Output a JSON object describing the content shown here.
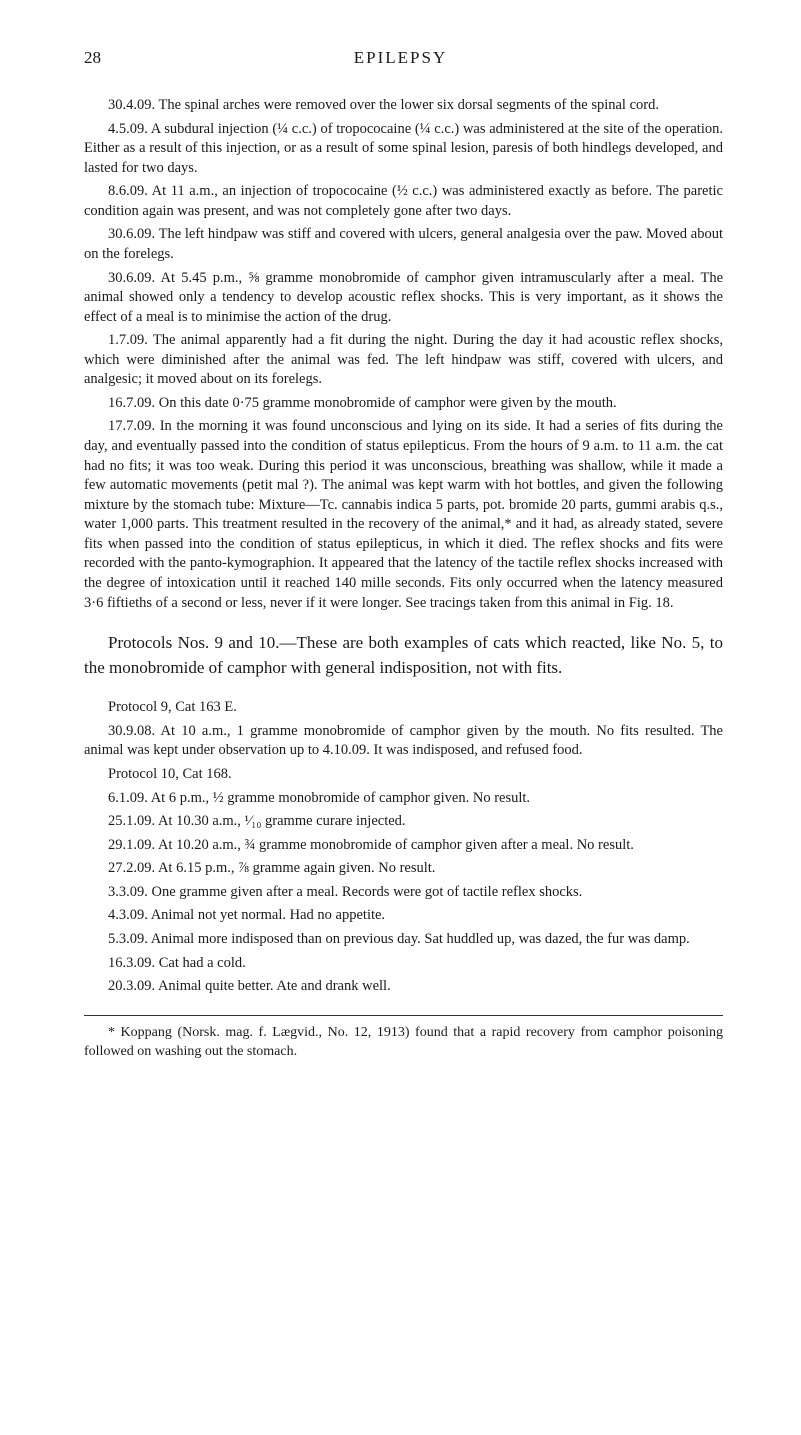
{
  "page": {
    "number": "28",
    "running_head": "EPILEPSY"
  },
  "body": {
    "p1": "30.4.09. The spinal arches were removed over the lower six dorsal segments of the spinal cord.",
    "p2": "4.5.09. A subdural injection (¼ c.c.) of tropococaine (¼ c.c.) was administered at the site of the operation. Either as a result of this injection, or as a result of some spinal lesion, paresis of both hindlegs developed, and lasted for two days.",
    "p3": "8.6.09. At 11 a.m., an injection of tropococaine (½ c.c.) was administered exactly as before. The paretic condition again was present, and was not completely gone after two days.",
    "p4": "30.6.09. The left hindpaw was stiff and covered with ulcers, general analgesia over the paw. Moved about on the forelegs.",
    "p5": "30.6.09. At 5.45 p.m., ⅝ gramme monobromide of camphor given intramuscularly after a meal. The animal showed only a tendency to develop acoustic reflex shocks. This is very important, as it shows the effect of a meal is to minimise the action of the drug.",
    "p6": "1.7.09. The animal apparently had a fit during the night. During the day it had acoustic reflex shocks, which were diminished after the animal was fed. The left hindpaw was stiff, covered with ulcers, and analgesic; it moved about on its forelegs.",
    "p7": "16.7.09. On this date 0·75 gramme monobromide of camphor were given by the mouth.",
    "p8": "17.7.09. In the morning it was found unconscious and lying on its side. It had a series of fits during the day, and eventually passed into the condition of status epilepticus. From the hours of 9 a.m. to 11 a.m. the cat had no fits; it was too weak. During this period it was unconscious, breathing was shallow, while it made a few automatic movements (petit mal ?). The animal was kept warm with hot bottles, and given the following mixture by the stomach tube: Mixture—Tc. cannabis indica 5 parts, pot. bromide 20 parts, gummi arabis q.s., water 1,000 parts. This treatment resulted in the recovery of the animal,* and it had, as already stated, severe fits when passed into the condition of status epilepticus, in which it died. The reflex shocks and fits were recorded with the panto-kymographion. It appeared that the latency of the tactile reflex shocks increased with the degree of intoxication until it reached 140 mille seconds. Fits only occurred when the latency measured 3·6 fiftieths of a second or less, never if it were longer. See tracings taken from this animal in Fig. 18.",
    "mid": "Protocols Nos. 9 and 10.—These are both examples of cats which reacted, like No. 5, to the monobromide of camphor with general indisposition, not with fits.",
    "p9": "Protocol 9, Cat 163 E.",
    "p10": "30.9.08. At 10 a.m., 1 gramme monobromide of camphor given by the mouth. No fits resulted. The animal was kept under observation up to 4.10.09. It was indisposed, and refused food.",
    "p11": "Protocol 10, Cat 168.",
    "p12": "6.1.09. At 6 p.m., ½ gramme monobromide of camphor given. No result.",
    "p13": "25.1.09. At 10.30 a.m., ¹⁄₁₀ gramme curare injected.",
    "p14": "29.1.09. At 10.20 a.m., ¾ gramme monobromide of camphor given after a meal. No result.",
    "p15": "27.2.09. At 6.15 p.m., ⅞ gramme again given. No result.",
    "p16": "3.3.09. One gramme given after a meal. Records were got of tactile reflex shocks.",
    "p17": "4.3.09. Animal not yet normal. Had no appetite.",
    "p18": "5.3.09. Animal more indisposed than on previous day. Sat huddled up, was dazed, the fur was damp.",
    "p19": "16.3.09. Cat had a cold.",
    "p20": "20.3.09. Animal quite better. Ate and drank well."
  },
  "footnote": {
    "text": "* Koppang (Norsk. mag. f. Lægvid., No. 12, 1913) found that a rapid recovery from camphor poisoning followed on washing out the stomach."
  }
}
